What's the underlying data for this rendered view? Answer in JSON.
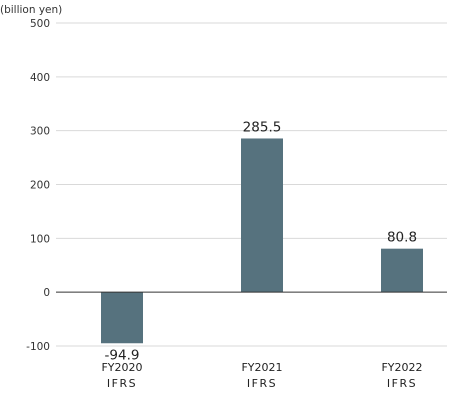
{
  "chart_data": {
    "type": "bar",
    "unit_label": "(billion yen)",
    "categories": [
      {
        "line1": "FY2020",
        "line2": "IFRS"
      },
      {
        "line1": "FY2021",
        "line2": "IFRS"
      },
      {
        "line1": "FY2022",
        "line2": "IFRS"
      }
    ],
    "values": [
      -94.9,
      285.5,
      80.8
    ],
    "value_labels": [
      "-94.9",
      "285.5",
      "80.8"
    ],
    "ylim": [
      -100,
      500
    ],
    "yticks": [
      500,
      400,
      300,
      200,
      100,
      0,
      -100
    ],
    "grid": true,
    "bar_color": "#56727e",
    "grid_color": "#d9d9d9",
    "zero_line_color": "#333333"
  }
}
